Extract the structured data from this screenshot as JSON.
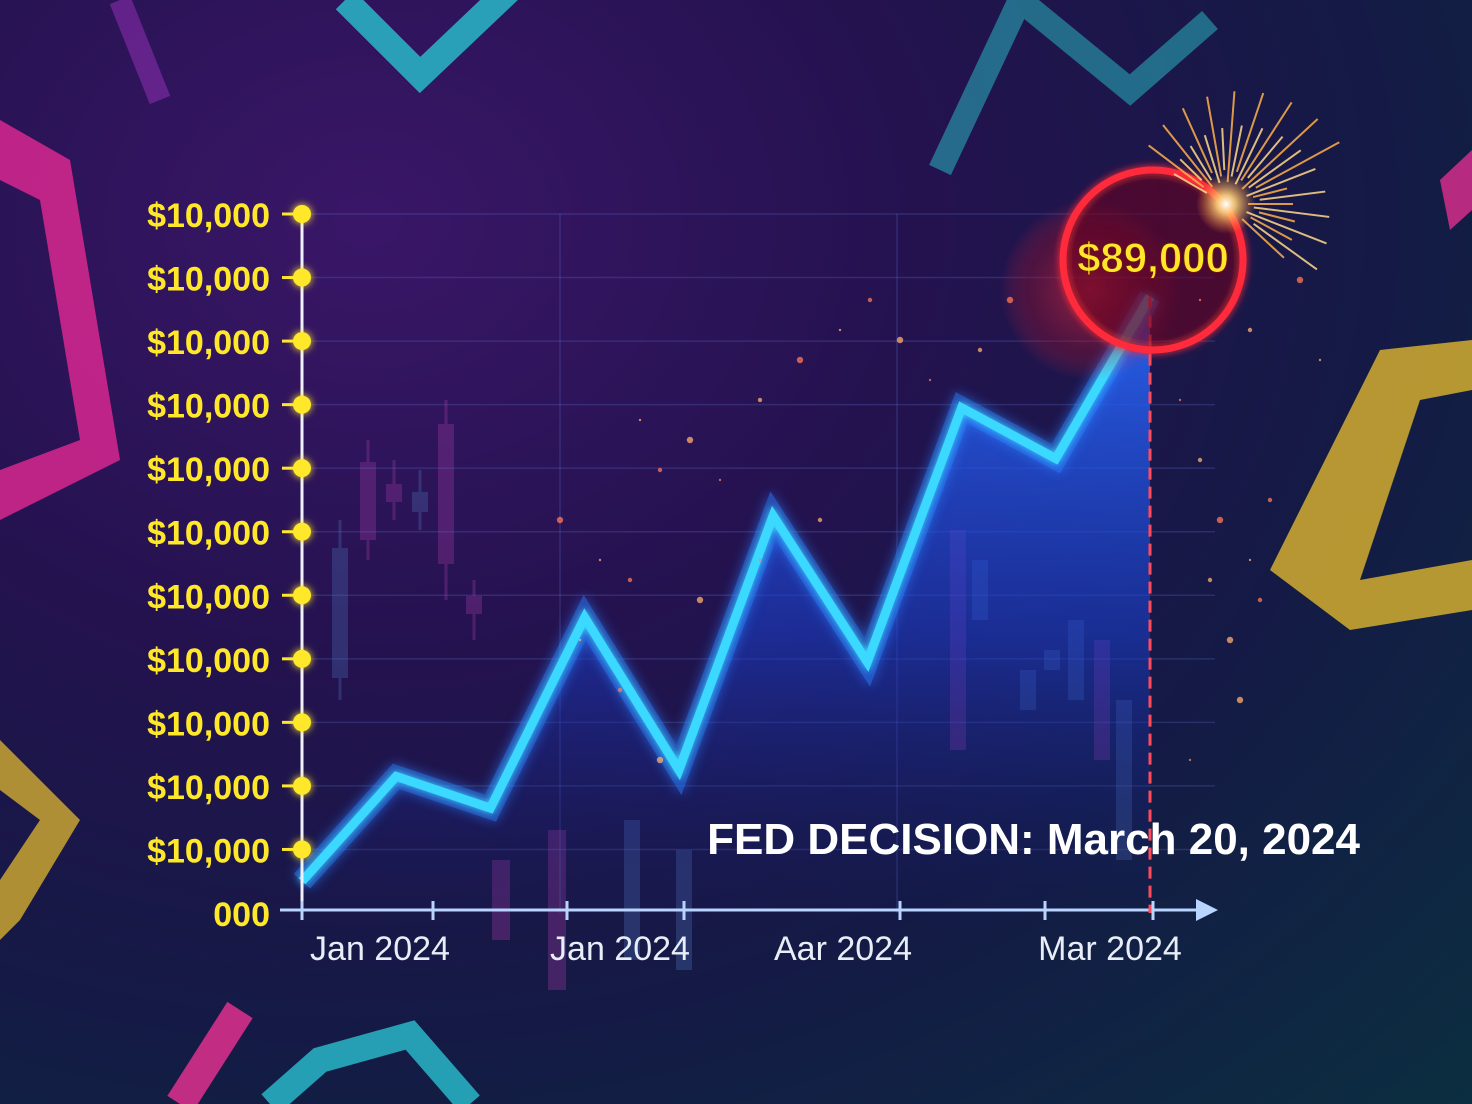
{
  "chart_data": {
    "type": "line",
    "title": "",
    "xlabel": "",
    "ylabel": "",
    "y_tick_labels": [
      "$10,000",
      "$10,000",
      "$10,000",
      "$10,000",
      "$10,000",
      "$10,000",
      "$10,000",
      "$10,000",
      "$10,000",
      "$10,000",
      "$10,000",
      "000"
    ],
    "x_tick_labels": [
      "Jan 2024",
      "Jan 2024",
      "Aar 2024",
      "Mar 2024"
    ],
    "series": [
      {
        "values": [
          0.5,
          2.15,
          1.65,
          4.65,
          2.25,
          6.25,
          3.95,
          7.95,
          7.15,
          9.7
        ]
      }
    ],
    "ylim": [
      0,
      11
    ],
    "xlim": [
      0,
      9
    ],
    "grid": true,
    "peak_label": "$89,000",
    "event_label": "FED DECISION: March 20, 2024",
    "colors": {
      "line": "#3ad8ff",
      "area": "#1f5cff",
      "tick_text": "#ffe82a",
      "peak_circle": "#ff2a3a",
      "event_line": "#ff4a5a"
    }
  }
}
